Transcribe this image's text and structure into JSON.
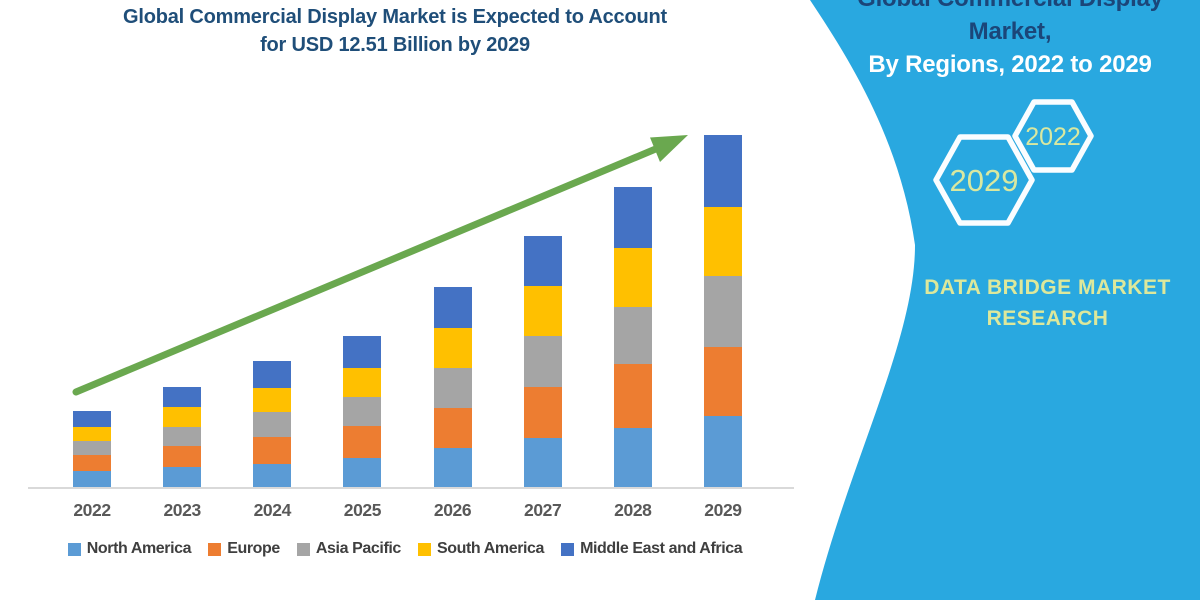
{
  "title": {
    "line1": "Global Commercial Display Market is Expected to Account",
    "line2": "for USD 12.51 Billion by 2029"
  },
  "panel": {
    "heading_line1": "Global Commercial Display Market,",
    "heading_line2": "By Regions, 2022 to 2029",
    "hexagons": [
      {
        "label": "2029"
      },
      {
        "label": "2022"
      }
    ],
    "brand_line1": "DATA BRIDGE MARKET",
    "brand_line2": "RESEARCH",
    "background_color": "#29A8E0",
    "accent_text_color": "#DDE89B"
  },
  "chart_data": {
    "type": "bar",
    "stacked": true,
    "title": "Global Commercial Display Market is Expected to Account for USD 12.51 Billion by 2029",
    "unit": "USD Billion",
    "xlabel": "",
    "ylabel": "",
    "ylim": [
      0,
      13
    ],
    "grid": false,
    "legend_position": "bottom",
    "categories": [
      "2022",
      "2023",
      "2024",
      "2025",
      "2026",
      "2027",
      "2028",
      "2029"
    ],
    "series": [
      {
        "name": "North America",
        "color": "#5B9BD5",
        "values": [
          0.57,
          0.71,
          0.82,
          1.03,
          1.39,
          1.74,
          2.1,
          2.52
        ]
      },
      {
        "name": "Europe",
        "color": "#ED7D31",
        "values": [
          0.57,
          0.75,
          0.96,
          1.14,
          1.42,
          1.81,
          2.27,
          2.45
        ]
      },
      {
        "name": "Asia Pacific",
        "color": "#A5A5A5",
        "values": [
          0.5,
          0.68,
          0.89,
          1.03,
          1.42,
          1.81,
          2.03,
          2.52
        ]
      },
      {
        "name": "South America",
        "color": "#FFC000",
        "values": [
          0.5,
          0.71,
          0.85,
          1.03,
          1.42,
          1.78,
          2.1,
          2.45
        ]
      },
      {
        "name": "Middle East and Africa",
        "color": "#4472C4",
        "values": [
          0.57,
          0.71,
          0.96,
          1.14,
          1.46,
          1.78,
          2.17,
          2.56
        ]
      }
    ],
    "totals": [
      2.71,
      3.56,
      4.48,
      5.37,
      7.11,
      8.92,
      10.67,
      12.51
    ],
    "trend_arrow": {
      "present": true,
      "color": "#6AA84F"
    }
  }
}
